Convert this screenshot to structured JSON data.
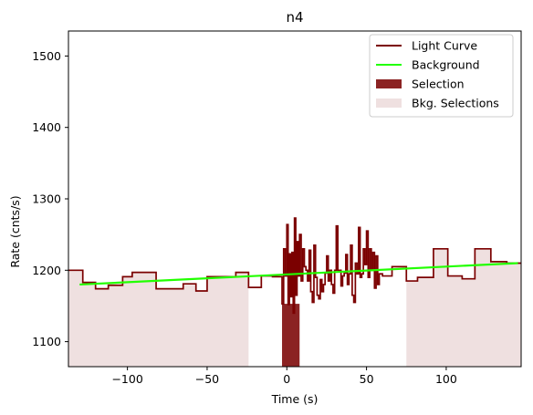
{
  "chart_data": {
    "type": "line",
    "title": "n4",
    "xlabel": "Time (s)",
    "ylabel": "Rate (cnts/s)",
    "xlim": [
      -137,
      147
    ],
    "ylim": [
      1065,
      1535
    ],
    "xticks": [
      -100,
      -50,
      0,
      50,
      100
    ],
    "xtick_labels": [
      "−100",
      "−50",
      "0",
      "50",
      "100"
    ],
    "yticks": [
      1100,
      1200,
      1300,
      1400,
      1500
    ],
    "ytick_labels": [
      "1100",
      "1200",
      "1300",
      "1400",
      "1500"
    ],
    "grid": false,
    "legend_position": "top-right",
    "legend": [
      {
        "label": "Light Curve",
        "kind": "line",
        "color": "#7b0000"
      },
      {
        "label": "Background",
        "kind": "line",
        "color": "#22ff00"
      },
      {
        "label": "Selection",
        "kind": "patch",
        "color": "#8b2323"
      },
      {
        "label": "Bkg. Selections",
        "kind": "patch",
        "color": "#efe0e0"
      }
    ],
    "series": [
      {
        "name": "Light Curve",
        "color": "#7b0000",
        "draw": "steps-post",
        "points": [
          [
            -137,
            1200
          ],
          [
            -128,
            1183
          ],
          [
            -120,
            1174
          ],
          [
            -112,
            1179
          ],
          [
            -103,
            1191
          ],
          [
            -97,
            1197
          ],
          [
            -82,
            1174
          ],
          [
            -65,
            1181
          ],
          [
            -57,
            1171
          ],
          [
            -50,
            1191
          ],
          [
            -40,
            1191
          ],
          [
            -32,
            1197
          ],
          [
            -24,
            1176
          ],
          [
            -16,
            1192
          ],
          [
            -9,
            1191
          ],
          [
            -3,
            1153
          ],
          [
            -2,
            1230
          ],
          [
            -1,
            1192
          ],
          [
            0,
            1264
          ],
          [
            0.8,
            1152
          ],
          [
            1.6,
            1223
          ],
          [
            2.4,
            1163
          ],
          [
            3.2,
            1225
          ],
          [
            4,
            1140
          ],
          [
            4.8,
            1273
          ],
          [
            5.6,
            1165
          ],
          [
            6.4,
            1240
          ],
          [
            7.2,
            1192
          ],
          [
            8,
            1250
          ],
          [
            9,
            1185
          ],
          [
            10,
            1230
          ],
          [
            11,
            1205
          ],
          [
            12,
            1200
          ],
          [
            13,
            1185
          ],
          [
            14,
            1228
          ],
          [
            15,
            1170
          ],
          [
            16,
            1155
          ],
          [
            17,
            1235
          ],
          [
            18,
            1190
          ],
          [
            19,
            1165
          ],
          [
            20,
            1160
          ],
          [
            21,
            1187
          ],
          [
            22,
            1170
          ],
          [
            23,
            1180
          ],
          [
            24,
            1196
          ],
          [
            25,
            1220
          ],
          [
            26,
            1185
          ],
          [
            27,
            1200
          ],
          [
            28,
            1180
          ],
          [
            29,
            1168
          ],
          [
            30,
            1200
          ],
          [
            31,
            1262
          ],
          [
            32,
            1200
          ],
          [
            33,
            1200
          ],
          [
            34,
            1178
          ],
          [
            35,
            1192
          ],
          [
            36,
            1196
          ],
          [
            37,
            1222
          ],
          [
            38,
            1180
          ],
          [
            39,
            1195
          ],
          [
            40,
            1235
          ],
          [
            41,
            1165
          ],
          [
            42,
            1155
          ],
          [
            43,
            1210
          ],
          [
            44,
            1195
          ],
          [
            45,
            1260
          ],
          [
            46,
            1190
          ],
          [
            47,
            1195
          ],
          [
            48,
            1230
          ],
          [
            49,
            1208
          ],
          [
            50,
            1255
          ],
          [
            51,
            1190
          ],
          [
            52,
            1230
          ],
          [
            53,
            1200
          ],
          [
            54,
            1225
          ],
          [
            55,
            1175
          ],
          [
            56,
            1220
          ],
          [
            57,
            1180
          ],
          [
            58,
            1195
          ],
          [
            60,
            1192
          ],
          [
            66,
            1205
          ],
          [
            75,
            1185
          ],
          [
            82,
            1190
          ],
          [
            92,
            1230
          ],
          [
            101,
            1192
          ],
          [
            110,
            1188
          ],
          [
            118,
            1230
          ],
          [
            128,
            1212
          ],
          [
            138,
            1210
          ],
          [
            147,
            1210
          ]
        ]
      },
      {
        "name": "Background",
        "color": "#22ff00",
        "draw": "line",
        "points": [
          [
            -130,
            1180
          ],
          [
            145,
            1210
          ]
        ]
      }
    ],
    "selection": {
      "label": "Selection",
      "color": "#8b2323",
      "range": [
        -3,
        8
      ],
      "top": 1153
    },
    "bkg_selections": [
      {
        "label": "Bkg. Selections",
        "color": "#efe0e0",
        "range": [
          -137,
          -24
        ]
      },
      {
        "label": "Bkg. Selections",
        "color": "#efe0e0",
        "range": [
          75,
          147
        ]
      }
    ]
  }
}
